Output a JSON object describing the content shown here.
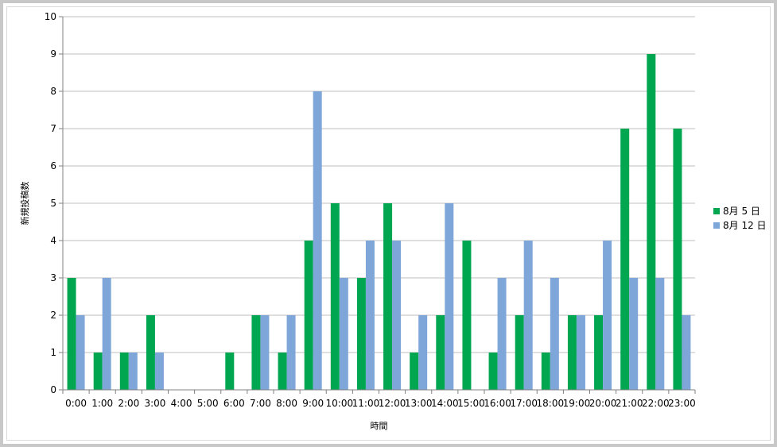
{
  "chart_data": {
    "type": "bar",
    "title": "",
    "xlabel": "時間",
    "ylabel": "新規投稿数",
    "ylim": [
      0,
      10
    ],
    "yticks": [
      "0",
      "1",
      "2",
      "3",
      "4",
      "5",
      "6",
      "7",
      "8",
      "9",
      "10"
    ],
    "categories": [
      "0:00",
      "1:00",
      "2:00",
      "3:00",
      "4:00",
      "5:00",
      "6:00",
      "7:00",
      "8:00",
      "9:00",
      "10:00",
      "11:00",
      "12:00",
      "13:00",
      "14:00",
      "15:00",
      "16:00",
      "17:00",
      "18:00",
      "19:00",
      "20:00",
      "21:00",
      "22:00",
      "23:00"
    ],
    "series": [
      {
        "name": "8月 5 日",
        "color": "#00a650",
        "values": [
          3,
          1,
          1,
          2,
          0,
          0,
          1,
          2,
          1,
          4,
          5,
          3,
          5,
          1,
          2,
          4,
          1,
          2,
          1,
          2,
          2,
          7,
          9,
          7
        ]
      },
      {
        "name": "8月 12 日",
        "color": "#7fa6d9",
        "values": [
          2,
          3,
          1,
          1,
          0,
          0,
          0,
          2,
          2,
          8,
          3,
          4,
          4,
          2,
          5,
          0,
          3,
          4,
          3,
          2,
          4,
          3,
          3,
          2
        ]
      }
    ],
    "grid": true,
    "legend": "right"
  }
}
